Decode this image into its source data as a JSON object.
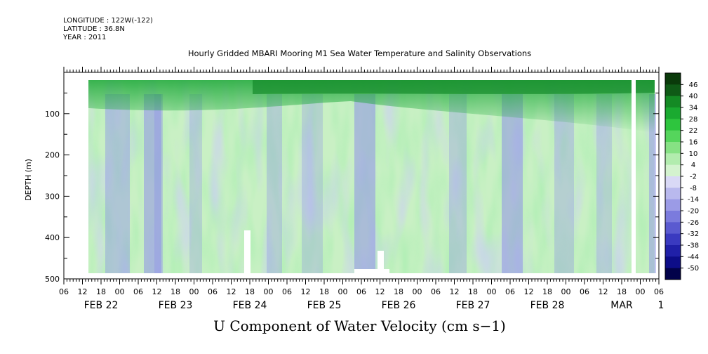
{
  "header": {
    "longitude": "LONGITUDE : 122W(-122)",
    "latitude": "LATITUDE : 36.8N",
    "year": "YEAR : 2011"
  },
  "chart_data": {
    "type": "heatmap",
    "title": "Hourly Gridded MBARI Mooring M1 Sea Water Temperature and Salinity Observations",
    "bottom_title": "U Component of Water Velocity (cm s−1)",
    "ylabel": "DEPTH (m)",
    "y_reversed": true,
    "ylim": [
      500,
      0
    ],
    "y_ticks": [
      "100",
      "200",
      "300",
      "400",
      "500"
    ],
    "x_range": [
      "2011-02-21 06:00",
      "2011-03-01 06:00"
    ],
    "x_hour_ticks": [
      "06",
      "12",
      "18",
      "00",
      "06",
      "12",
      "18",
      "00",
      "06",
      "12",
      "18",
      "00",
      "06",
      "12",
      "18",
      "00",
      "06",
      "12",
      "18",
      "00",
      "06",
      "12",
      "18",
      "00",
      "06",
      "12",
      "18",
      "00",
      "06",
      "12",
      "18",
      "00",
      "06"
    ],
    "x_day_labels": [
      "FEB 22",
      "FEB 23",
      "FEB 24",
      "FEB 25",
      "FEB 26",
      "FEB 27",
      "FEB 28",
      "MAR",
      "1"
    ],
    "colorbar": {
      "levels": [
        "46",
        "40",
        "34",
        "28",
        "22",
        "16",
        "10",
        "4",
        "-2",
        "-8",
        "-14",
        "-20",
        "-26",
        "-32",
        "-38",
        "-44",
        "-50"
      ],
      "colors": [
        "#0a3a0a",
        "#0f5a16",
        "#148a24",
        "#1aaa30",
        "#2ec53e",
        "#55d55c",
        "#86e184",
        "#b2ecae",
        "#d4f3cf",
        "#d9d9f6",
        "#b9b9ee",
        "#9b9be6",
        "#7b7bdd",
        "#5a5ad0",
        "#3a3ac0",
        "#2020a8",
        "#0d0d88",
        "#02024a"
      ]
    },
    "field_summary": {
      "surface_band": "strong positive velocities (green, up to ~40) in the upper ~80 m, increasing from FEB 24 onward",
      "negative_columns": "weak negative velocities (blue, ~-10 to -20) in vertical bands near FEB 22 12h, FEB 23 06h, FEB 25 18h and FEB 27 06h",
      "missing_data": "white gaps near FEB 24 00h and FEB 25 18h–FEB 26 00h at 400–500 m and a vertical gap at MAR 1 00h"
    }
  }
}
